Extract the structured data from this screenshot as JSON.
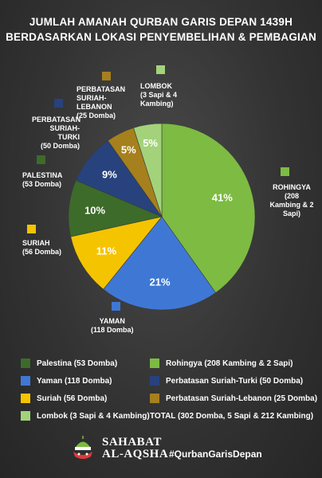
{
  "title_lines": [
    "JUMLAH AMANAH QURBAN GARIS DEPAN 1439H",
    "BERDASARKAN LOKASI PENYEMBELIHAN & PEMBAGIAN"
  ],
  "chart_data": {
    "type": "pie",
    "title": "JUMLAH AMANAH QURBAN GARIS DEPAN 1439H BERDASARKAN LOKASI PENYEMBELIHAN & PEMBAGIAN",
    "slices": [
      {
        "key": "rohingya",
        "value": 41,
        "label": "41%",
        "color": "#7dbb43",
        "callout": {
          "name": "ROHINGYA",
          "detail": "(208 Kambing & 2 Sapi)"
        }
      },
      {
        "key": "yaman",
        "value": 21,
        "label": "21%",
        "color": "#3f78d4",
        "callout": {
          "name": "YAMAN",
          "detail": "(118 Domba)"
        }
      },
      {
        "key": "suriah",
        "value": 11,
        "label": "11%",
        "color": "#f5c400",
        "callout": {
          "name": "SURIAH",
          "detail": "(56 Domba)"
        }
      },
      {
        "key": "palestina",
        "value": 10,
        "label": "10%",
        "color": "#3d6b2a",
        "callout": {
          "name": "PALESTINA",
          "detail": "(53 Domba)"
        }
      },
      {
        "key": "suriah_turki",
        "value": 9,
        "label": "9%",
        "color": "#27427d",
        "callout": {
          "name": "PERBATASAN SURIAH-TURKI",
          "detail": "(50 Domba)"
        }
      },
      {
        "key": "suriah_lebanon",
        "value": 5,
        "label": "5%",
        "color": "#a6801c",
        "callout": {
          "name": "PERBATASAN SURIAH-LEBANON",
          "detail": "(25 Domba)"
        }
      },
      {
        "key": "lombok",
        "value": 5,
        "label": "5%",
        "color": "#a3d27a",
        "callout": {
          "name": "LOMBOK",
          "detail": "(3 Sapi & 4 Kambing)"
        }
      }
    ],
    "legend": [
      {
        "text": "Palestina (53 Domba)",
        "color": "#3d6b2a"
      },
      {
        "text": "Rohingya (208 Kambing & 2 Sapi)",
        "color": "#7dbb43"
      },
      {
        "text": "Yaman (118 Domba)",
        "color": "#3f78d4"
      },
      {
        "text": "Perbatasan Suriah-Turki (50 Domba)",
        "color": "#27427d"
      },
      {
        "text": "Suriah (56 Domba)",
        "color": "#f5c400"
      },
      {
        "text": "Perbatasan Suriah-Lebanon (25 Domba)",
        "color": "#a6801c"
      },
      {
        "text": "Lombok (3 Sapi & 4 Kambing)",
        "color": "#a3d27a"
      },
      {
        "text": "TOTAL (302 Domba, 5 Sapi & 212 Kambing)",
        "color": ""
      }
    ]
  },
  "logo": {
    "line1": "SAHABAT",
    "line2": "AL-AQSHA",
    "icon": "al-aqsha-dome-icon"
  },
  "hashtag": "#QurbanGarisDepan"
}
